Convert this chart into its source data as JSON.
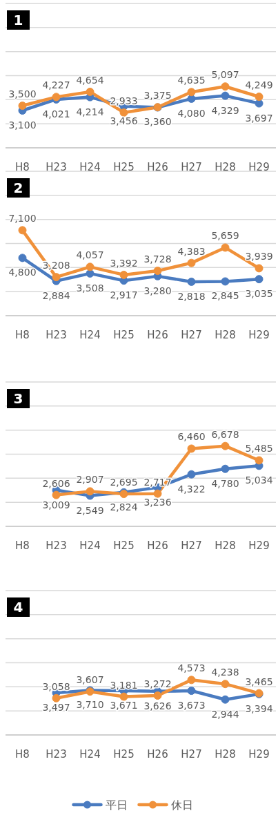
{
  "chart_data": [
    {
      "type": "line",
      "title": "1",
      "categories": [
        "H8",
        "H23",
        "H24",
        "H25",
        "H26",
        "H27",
        "H28",
        "H29"
      ],
      "series": [
        {
          "color": "#4a7bc0",
          "values": [
            3100,
            4021,
            4214,
            3456,
            3360,
            4080,
            4329,
            3697
          ],
          "value_labels": [
            "3,100",
            "4,021",
            "4,214",
            "3,456",
            "3,360",
            "4,080",
            "4,329",
            "3,697"
          ]
        },
        {
          "color": "#f0913a",
          "values": [
            3500,
            4227,
            4654,
            2933,
            3375,
            4635,
            5097,
            4249
          ],
          "value_labels": [
            "3,500",
            "4,227",
            "4,654",
            "2,933",
            "3,375",
            "4,635",
            "5,097",
            "4,249"
          ]
        }
      ],
      "ylim": [
        0,
        12000
      ],
      "yticks": [
        {
          "value": 0,
          "label": null
        },
        {
          "value": 2000,
          "label": null
        },
        {
          "value": 4000,
          "label": null
        },
        {
          "value": 6000,
          "label": null
        },
        {
          "value": 8000,
          "label": null
        },
        {
          "value": 10000,
          "label": null
        },
        {
          "value": 12000,
          "label": null
        }
      ],
      "tick_labels": "x",
      "grid": "y",
      "marker": "circle",
      "legend": false
    },
    {
      "type": "line",
      "title": "2",
      "categories": [
        "H8",
        "H23",
        "H24",
        "H25",
        "H26",
        "H27",
        "H28",
        "H29"
      ],
      "series": [
        {
          "color": "#4a7bc0",
          "values": [
            4800,
            2884,
            3508,
            2917,
            3280,
            2818,
            2845,
            3035
          ],
          "value_labels": [
            "4,800",
            "2,884",
            "3,508",
            "2,917",
            "3,280",
            "2,818",
            "2,845",
            "3,035"
          ]
        },
        {
          "color": "#f0913a",
          "values": [
            7100,
            3208,
            4057,
            3392,
            3728,
            4383,
            5659,
            3939
          ],
          "value_labels": [
            "7,100",
            "3,208",
            "4,057",
            "3,392",
            "3,728",
            "4,383",
            "5,659",
            "3,939"
          ]
        }
      ],
      "ylim": [
        0,
        12000
      ],
      "yticks": [
        {
          "value": 0,
          "label": null
        },
        {
          "value": 2000,
          "label": null
        },
        {
          "value": 4000,
          "label": null
        },
        {
          "value": 6000,
          "label": null
        },
        {
          "value": 8000,
          "label": null
        },
        {
          "value": 10000,
          "label": null
        },
        {
          "value": 12000,
          "label": null
        }
      ],
      "tick_labels": "x",
      "grid": "y",
      "marker": "circle",
      "legend": false
    },
    {
      "type": "line",
      "title": "3",
      "categories": [
        "H8",
        "H23",
        "H24",
        "H25",
        "H26",
        "H27",
        "H28",
        "H29"
      ],
      "series": [
        {
          "color": "#4a7bc0",
          "values": [
            null,
            3009,
            2549,
            2824,
            3236,
            4322,
            4780,
            5034
          ],
          "value_labels": [
            null,
            "3,009",
            "2,549",
            "2,824",
            "3,236",
            "4,322",
            "4,780",
            "5,034"
          ]
        },
        {
          "color": "#f0913a",
          "values": [
            null,
            2606,
            2907,
            2695,
            2717,
            6460,
            6678,
            5485
          ],
          "value_labels": [
            null,
            "2,606",
            "2,907",
            "2,695",
            "2,717",
            "6,460",
            "6,678",
            "5,485"
          ]
        }
      ],
      "ylim": [
        0,
        12000
      ],
      "yticks": [
        {
          "value": 0,
          "label": null
        },
        {
          "value": 2000,
          "label": null
        },
        {
          "value": 4000,
          "label": null
        },
        {
          "value": 6000,
          "label": null
        },
        {
          "value": 8000,
          "label": null
        },
        {
          "value": 10000,
          "label": null
        },
        {
          "value": 12000,
          "label": null
        }
      ],
      "tick_labels": "x",
      "grid": "y",
      "marker": "circle",
      "legend": false
    },
    {
      "type": "line",
      "title": "4",
      "categories": [
        "H8",
        "H23",
        "H24",
        "H25",
        "H26",
        "H27",
        "H28",
        "H29"
      ],
      "series": [
        {
          "name": "平日",
          "color": "#4a7bc0",
          "values": [
            null,
            3497,
            3710,
            3671,
            3626,
            3673,
            2944,
            3394
          ],
          "value_labels": [
            null,
            "3,497",
            "3,710",
            "3,671",
            "3,626",
            "3,673",
            "2,944",
            "3,394"
          ]
        },
        {
          "name": "休日",
          "color": "#f0913a",
          "values": [
            null,
            3058,
            3607,
            3181,
            3272,
            4573,
            4238,
            3465
          ],
          "value_labels": [
            null,
            "3,058",
            "3,607",
            "3,181",
            "3,272",
            "4,573",
            "4,238",
            "3,465"
          ]
        }
      ],
      "ylim": [
        0,
        12000
      ],
      "yticks": [
        {
          "value": 0,
          "label": null
        },
        {
          "value": 2000,
          "label": null
        },
        {
          "value": 4000,
          "label": null
        },
        {
          "value": 6000,
          "label": null
        },
        {
          "value": 8000,
          "label": null
        },
        {
          "value": 10000,
          "label": null
        },
        {
          "value": 12000,
          "label": null
        }
      ],
      "tick_labels": "x",
      "grid": "y",
      "marker": "circle",
      "legend": "bottom"
    }
  ]
}
